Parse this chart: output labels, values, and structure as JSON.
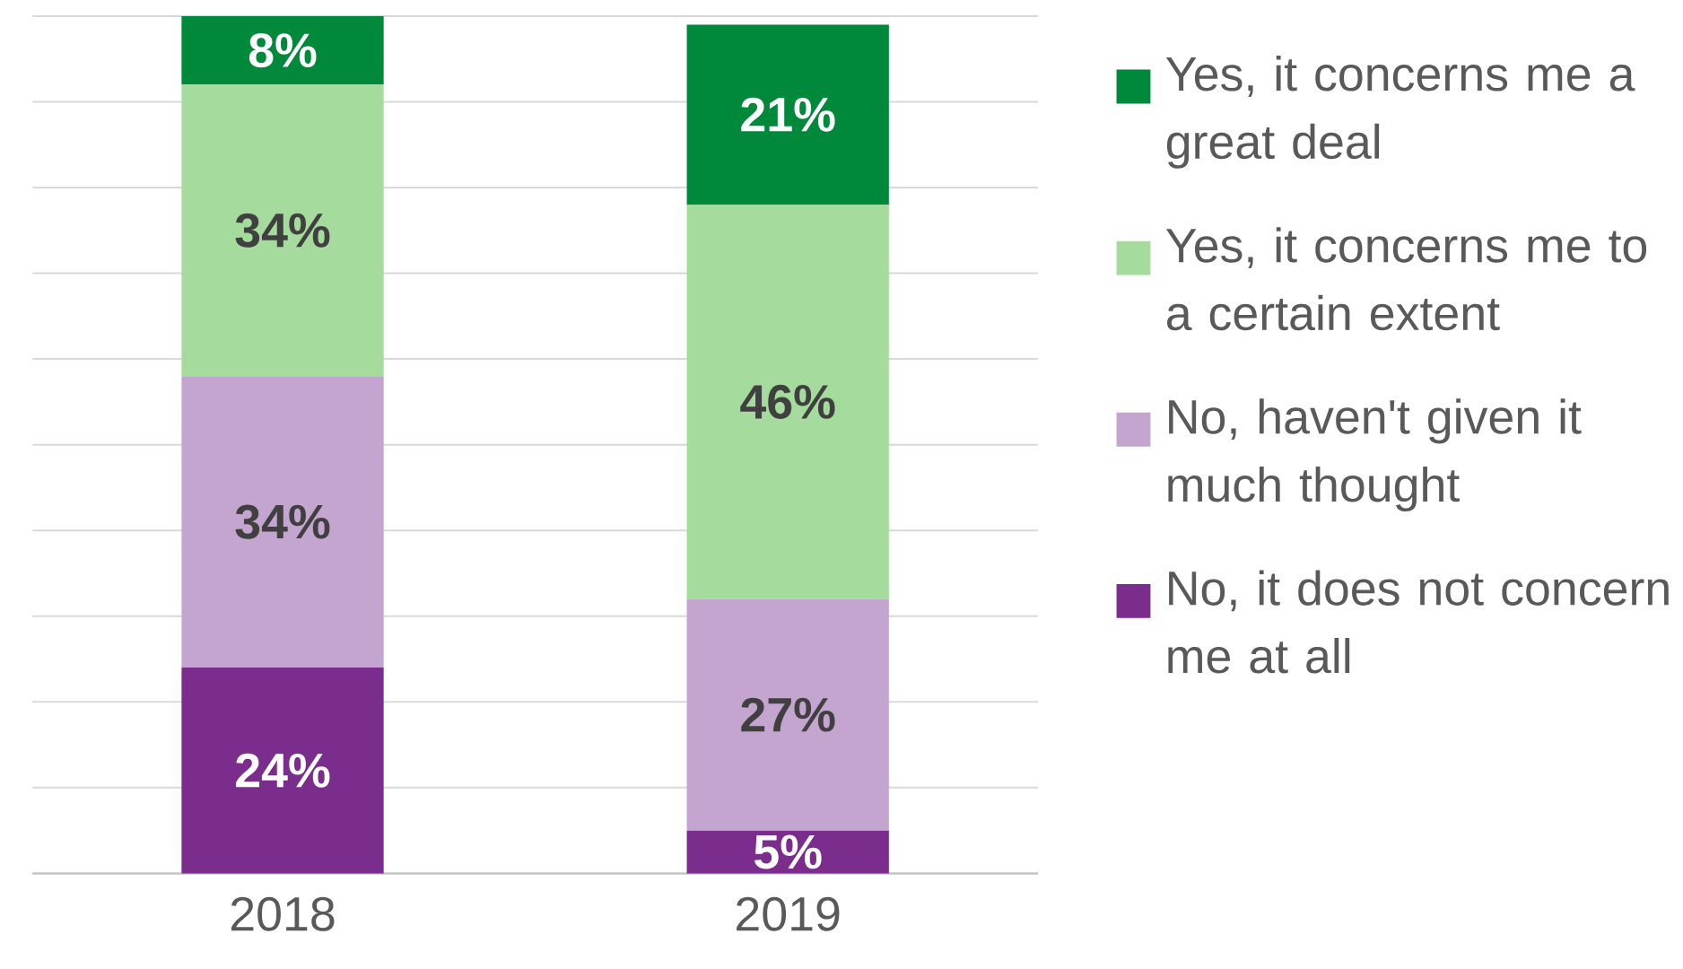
{
  "chart_data": {
    "type": "bar",
    "stacked": true,
    "categories": [
      "2018",
      "2019"
    ],
    "series": [
      {
        "name": "No, it does not concern me at all",
        "color": "#7b2d8e",
        "values": [
          24,
          5
        ],
        "value_labels": [
          "24%",
          "5%"
        ]
      },
      {
        "name": "No, haven't given it much thought",
        "color": "#c3a5d0",
        "values": [
          34,
          27
        ],
        "value_labels": [
          "34%",
          "27%"
        ]
      },
      {
        "name": "Yes, it concerns me to a certain extent",
        "color": "#a5dc9d",
        "values": [
          34,
          46
        ],
        "value_labels": [
          "34%",
          "46%"
        ]
      },
      {
        "name": "Yes, it concerns me a great deal",
        "color": "#00893a",
        "values": [
          8,
          21
        ],
        "value_labels": [
          "8%",
          "21%"
        ]
      }
    ],
    "ylim": [
      0,
      100
    ],
    "yticks": [
      {
        "value": 0,
        "label": null
      },
      {
        "value": 10,
        "label": null
      },
      {
        "value": 20,
        "label": null
      },
      {
        "value": 30,
        "label": null
      },
      {
        "value": 40,
        "label": null
      },
      {
        "value": 50,
        "label": null
      },
      {
        "value": 60,
        "label": null
      },
      {
        "value": 70,
        "label": null
      },
      {
        "value": 80,
        "label": null
      },
      {
        "value": 90,
        "label": null
      },
      {
        "value": 100,
        "label": null
      }
    ],
    "grid": "y",
    "legend": "right",
    "tick_labels": "x"
  }
}
